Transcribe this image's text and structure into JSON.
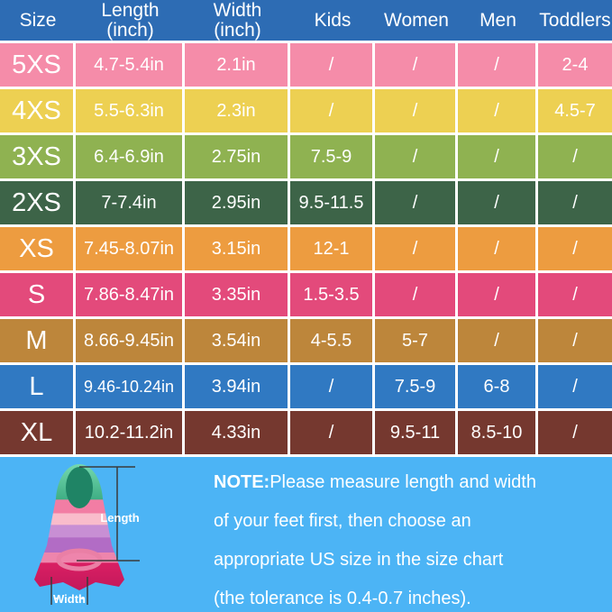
{
  "colors": {
    "header_bg": "#2d6cb4",
    "grid": "#ffffff",
    "text": "#ffffff",
    "bottom_bg": "#4cb4f5",
    "measure_line": "#3b3b3b",
    "fin": {
      "tip_rim": "#74d8ae",
      "tip_green": "#3fae84",
      "tip_oval": "#1f8465",
      "band_pink": "#f27da4",
      "band_light_pink": "#f9bccb",
      "band_purple_light": "#c88fd4",
      "band_purple": "#b26cc5",
      "band_rose": "#ee85ac",
      "foot_top": "#da1f63",
      "foot_bottom": "#c2185b",
      "ring": "#ea7fa5"
    }
  },
  "table": {
    "headers": [
      {
        "line1": "Size",
        "line2": ""
      },
      {
        "line1": "Length",
        "line2": "(inch)"
      },
      {
        "line1": "Width",
        "line2": "(inch)"
      },
      {
        "line1": "Kids",
        "line2": ""
      },
      {
        "line1": "Women",
        "line2": ""
      },
      {
        "line1": "Men",
        "line2": ""
      },
      {
        "line1": "Toddlers",
        "line2": ""
      }
    ],
    "rows": [
      {
        "size": "5XS",
        "length": "4.7-5.4in",
        "width": "2.1in",
        "kids": "/",
        "women": "/",
        "men": "/",
        "toddlers": "2-4",
        "color": "#f58ca9"
      },
      {
        "size": "4XS",
        "length": "5.5-6.3in",
        "width": "2.3in",
        "kids": "/",
        "women": "/",
        "men": "/",
        "toddlers": "4.5-7",
        "color": "#edd052"
      },
      {
        "size": "3XS",
        "length": "6.4-6.9in",
        "width": "2.75in",
        "kids": "7.5-9",
        "women": "/",
        "men": "/",
        "toddlers": "/",
        "color": "#8fb251"
      },
      {
        "size": "2XS",
        "length": "7-7.4in",
        "width": "2.95in",
        "kids": "9.5-11.5",
        "women": "/",
        "men": "/",
        "toddlers": "/",
        "color": "#3d6448"
      },
      {
        "size": "XS",
        "length": "7.45-8.07in",
        "width": "3.15in",
        "kids": "12-1",
        "women": "/",
        "men": "/",
        "toddlers": "/",
        "color": "#ed9c40"
      },
      {
        "size": "S",
        "length": "7.86-8.47in",
        "width": "3.35in",
        "kids": "1.5-3.5",
        "women": "/",
        "men": "/",
        "toddlers": "/",
        "color": "#e34a7b"
      },
      {
        "size": "M",
        "length": "8.66-9.45in",
        "width": "3.54in",
        "kids": "4-5.5",
        "women": "5-7",
        "men": "/",
        "toddlers": "/",
        "color": "#bd863b"
      },
      {
        "size": "L",
        "length": "9.46-10.24in",
        "width": "3.94in",
        "kids": "/",
        "women": "7.5-9",
        "men": "6-8",
        "toddlers": "/",
        "color": "#3079c2"
      },
      {
        "size": "XL",
        "length": "10.2-11.2in",
        "width": "4.33in",
        "kids": "/",
        "women": "9.5-11",
        "men": "8.5-10",
        "toddlers": "/",
        "color": "#75382f"
      }
    ]
  },
  "figure": {
    "length_label": "Length",
    "width_label": "Width"
  },
  "note": {
    "prefix": "NOTE:",
    "lines": [
      "Please measure length and width",
      "of your feet first, then choose an",
      "appropriate US size in the size chart",
      "(the tolerance is 0.4-0.7 inches)."
    ]
  },
  "chart_data": {
    "type": "table",
    "columns": [
      "Size",
      "Length (inch)",
      "Width (inch)",
      "Kids",
      "Women",
      "Men",
      "Toddlers"
    ],
    "rows": [
      [
        "5XS",
        "4.7-5.4in",
        "2.1in",
        "/",
        "/",
        "/",
        "2-4"
      ],
      [
        "4XS",
        "5.5-6.3in",
        "2.3in",
        "/",
        "/",
        "/",
        "4.5-7"
      ],
      [
        "3XS",
        "6.4-6.9in",
        "2.75in",
        "7.5-9",
        "/",
        "/",
        "/"
      ],
      [
        "2XS",
        "7-7.4in",
        "2.95in",
        "9.5-11.5",
        "/",
        "/",
        "/"
      ],
      [
        "XS",
        "7.45-8.07in",
        "3.15in",
        "12-1",
        "/",
        "/",
        "/"
      ],
      [
        "S",
        "7.86-8.47in",
        "3.35in",
        "1.5-3.5",
        "/",
        "/",
        "/"
      ],
      [
        "M",
        "8.66-9.45in",
        "3.54in",
        "4-5.5",
        "5-7",
        "/",
        "/"
      ],
      [
        "L",
        "9.46-10.24in",
        "3.94in",
        "/",
        "7.5-9",
        "6-8",
        "/"
      ],
      [
        "XL",
        "10.2-11.2in",
        "4.33in",
        "/",
        "9.5-11",
        "8.5-10",
        "/"
      ]
    ],
    "title": "Swim fin size chart"
  }
}
